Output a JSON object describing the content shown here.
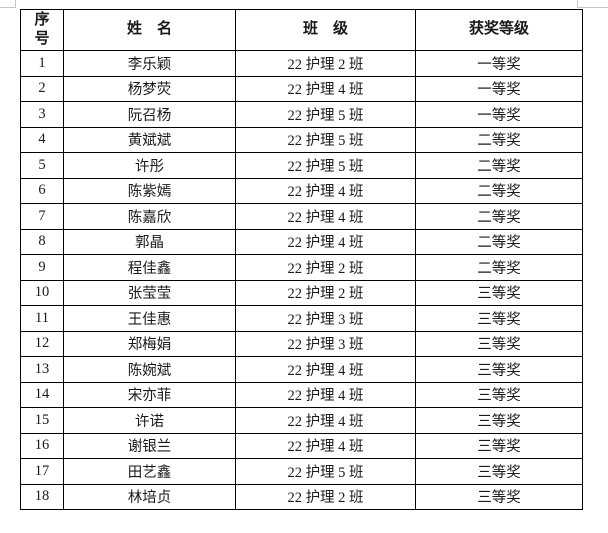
{
  "page": {
    "background_color": "#ffffff",
    "corner_mark_color": "#c6c6c6"
  },
  "table": {
    "border_color": "#000000",
    "text_color": "#1a1a1a",
    "headers": [
      "序\n号",
      "姓　名",
      "班　级",
      "获奖等级"
    ],
    "rows": [
      {
        "no": "1",
        "name": "李乐颖",
        "class": "22 护理 2 班",
        "award": "一等奖"
      },
      {
        "no": "2",
        "name": "杨梦荧",
        "class": "22 护理 4 班",
        "award": "一等奖"
      },
      {
        "no": "3",
        "name": "阮召杨",
        "class": "22 护理 5 班",
        "award": "一等奖"
      },
      {
        "no": "4",
        "name": "黄斌斌",
        "class": "22 护理 5 班",
        "award": "二等奖"
      },
      {
        "no": "5",
        "name": "许彤",
        "class": "22 护理 5 班",
        "award": "二等奖"
      },
      {
        "no": "6",
        "name": "陈紫嫣",
        "class": "22 护理 4 班",
        "award": "二等奖"
      },
      {
        "no": "7",
        "name": "陈嘉欣",
        "class": "22 护理 4 班",
        "award": "二等奖"
      },
      {
        "no": "8",
        "name": "郭晶",
        "class": "22 护理 4 班",
        "award": "二等奖"
      },
      {
        "no": "9",
        "name": "程佳鑫",
        "class": "22 护理 2 班",
        "award": "二等奖"
      },
      {
        "no": "10",
        "name": "张莹莹",
        "class": "22 护理 2 班",
        "award": "三等奖"
      },
      {
        "no": "11",
        "name": "王佳惠",
        "class": "22 护理 3 班",
        "award": "三等奖"
      },
      {
        "no": "12",
        "name": "郑梅娟",
        "class": "22 护理 3 班",
        "award": "三等奖"
      },
      {
        "no": "13",
        "name": "陈婉斌",
        "class": "22 护理 4 班",
        "award": "三等奖"
      },
      {
        "no": "14",
        "name": "宋亦菲",
        "class": "22 护理 4 班",
        "award": "三等奖"
      },
      {
        "no": "15",
        "name": "许诺",
        "class": "22 护理 4 班",
        "award": "三等奖"
      },
      {
        "no": "16",
        "name": "谢银兰",
        "class": "22 护理 4 班",
        "award": "三等奖"
      },
      {
        "no": "17",
        "name": "田艺鑫",
        "class": "22 护理 5 班",
        "award": "三等奖"
      },
      {
        "no": "18",
        "name": "林培贞",
        "class": "22 护理 2 班",
        "award": "三等奖"
      }
    ]
  }
}
